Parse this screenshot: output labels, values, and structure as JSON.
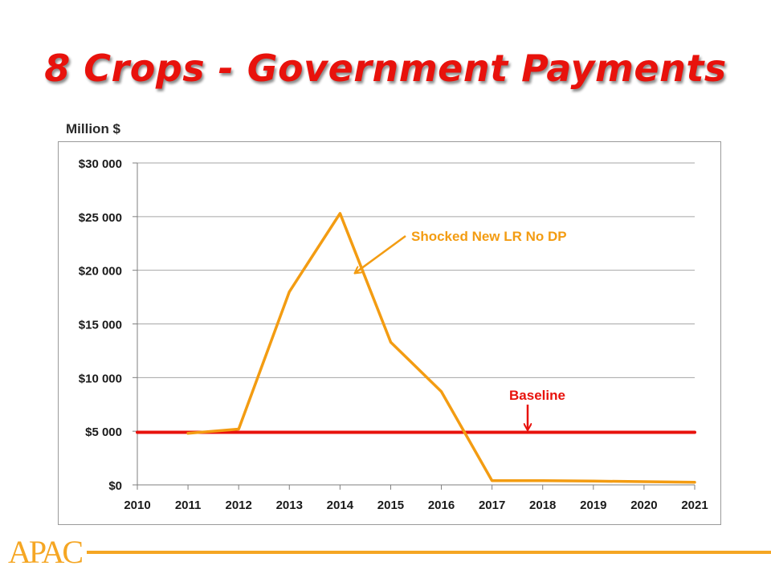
{
  "slide": {
    "title": "8 Crops - Government Payments",
    "unit_label": "Million $",
    "logo_text": "APAC"
  },
  "colors": {
    "title": "#e8120c",
    "baseline": "#e8120c",
    "shocked": "#f39c12",
    "gridline": "#a6a6a6",
    "logo": "#f5a623"
  },
  "chart_data": {
    "type": "line",
    "title": "8 Crops - Government Payments",
    "ylabel": "Million $",
    "xlabel": "",
    "x": [
      2010,
      2011,
      2012,
      2013,
      2014,
      2015,
      2016,
      2017,
      2018,
      2019,
      2020,
      2021
    ],
    "x_tick_labels": [
      "2010",
      "2011",
      "2012",
      "2013",
      "2014",
      "2015",
      "2016",
      "2017",
      "2018",
      "2019",
      "2020",
      "2021"
    ],
    "ylim": [
      0,
      30000
    ],
    "y_ticks": [
      0,
      5000,
      10000,
      15000,
      20000,
      25000,
      30000
    ],
    "y_tick_labels": [
      "$0",
      "$5 000",
      "$10 000",
      "$15 000",
      "$20 000",
      "$25 000",
      "$30 000"
    ],
    "grid": true,
    "legend": "none",
    "series": [
      {
        "name": "Baseline",
        "color": "#e8120c",
        "values": [
          4900,
          4900,
          4900,
          4900,
          4900,
          4900,
          4900,
          4900,
          4900,
          4900,
          4900,
          4900
        ]
      },
      {
        "name": "Shocked New LR No DP",
        "color": "#f39c12",
        "values": [
          null,
          4800,
          5200,
          18000,
          25300,
          13300,
          8700,
          400,
          400,
          350,
          300,
          250
        ]
      }
    ],
    "annotations": [
      {
        "text": "Shocked New LR No DP",
        "color": "#f39c12",
        "series": "Shocked New LR No DP",
        "arrow_to": {
          "x": 2014.3,
          "y": 22000
        }
      },
      {
        "text": "Baseline",
        "color": "#e8120c",
        "series": "Baseline",
        "arrow_to": {
          "x": 2017.7,
          "y": 5000
        }
      }
    ]
  }
}
